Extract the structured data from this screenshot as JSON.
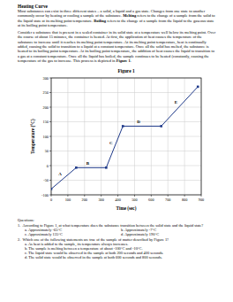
{
  "title": "Heating Curve",
  "paragraphs": [
    {
      "runs": [
        {
          "text": "Most substances can exist in three different states – a solid, a liquid and a gas state. Changes from one state to another commonly occur by heating or cooling a sample of the substance. "
        },
        {
          "text": "Melting",
          "bold": true
        },
        {
          "text": " refers to the change of a sample from the solid to the liquid state at its melting point temperature. "
        },
        {
          "text": "Boiling",
          "bold": true
        },
        {
          "text": " refers to the change of a sample from the liquid to the gaseous state at its boiling point temperature."
        }
      ]
    },
    {
      "runs": [
        {
          "text": "Consider a substance that is present in a sealed container in its solid state at a temperature well below its melting point. Over the course of about 15 minutes, the container is heated. At first, the application of heat causes the temperature of the substance to increase until it reaches its melting point temperature. At its melting point temperature, heat is continually added, causing the solid to transition to a liquid at a constant temperature. Once all the solid has melted, the substance is heated to its boiling point temperature. At its boiling point temperature, the addition of heat causes the liquid to transition to a gas at a constant temperature. Once all the liquid has boiled, the sample continues to be heated (constantly, causing the temperature of the gas to increase. This process is depicted in "
        },
        {
          "text": "Figure 1",
          "bold": true
        },
        {
          "text": "."
        }
      ]
    }
  ],
  "chart_data": {
    "type": "line",
    "title": "Figure 1",
    "x_label": "Time (sec)",
    "y_label": "Temperature (°C)",
    "x": [
      0,
      150,
      330,
      430,
      660,
      880
    ],
    "values": [
      -80,
      -7,
      -7,
      135,
      135,
      270
    ],
    "segment_labels": [
      "A",
      "B",
      "C",
      "D",
      "E"
    ],
    "color": "#1f3a8a",
    "marker": "square",
    "xlim": [
      0,
      900
    ],
    "xticks": [
      0,
      100,
      200,
      300,
      400,
      500,
      600,
      700,
      800,
      900
    ],
    "ylim": [
      -100,
      300
    ],
    "yticks": [
      -100,
      -50,
      0,
      50,
      100,
      150,
      200,
      250,
      300
    ],
    "grid": true
  },
  "questions_heading": "Questions:",
  "questions": [
    {
      "number": "1.",
      "text": "According to Figure 1, at what temperature does the substance transition between the solid state and the liquid state?",
      "options": [
        "a. Approximately -65°C",
        "b. Approximately -7°C",
        "c. Approximately 135°C",
        "d. Approximately 190°C"
      ]
    },
    {
      "number": "2.",
      "text": "Which one of the following statements are true of the sample of matter described by Figure 1?",
      "options": [
        "a. As heat is added to the sample, its temperature always increases.",
        "b. The sample is melting between a temperature of about -100°C and -10°C.",
        "c. The liquid state would be observed in the sample at both 200 seconds and 400 seconds.",
        "d. The solid state would be observed in the sample at both 600 seconds and 800 seconds."
      ]
    }
  ]
}
